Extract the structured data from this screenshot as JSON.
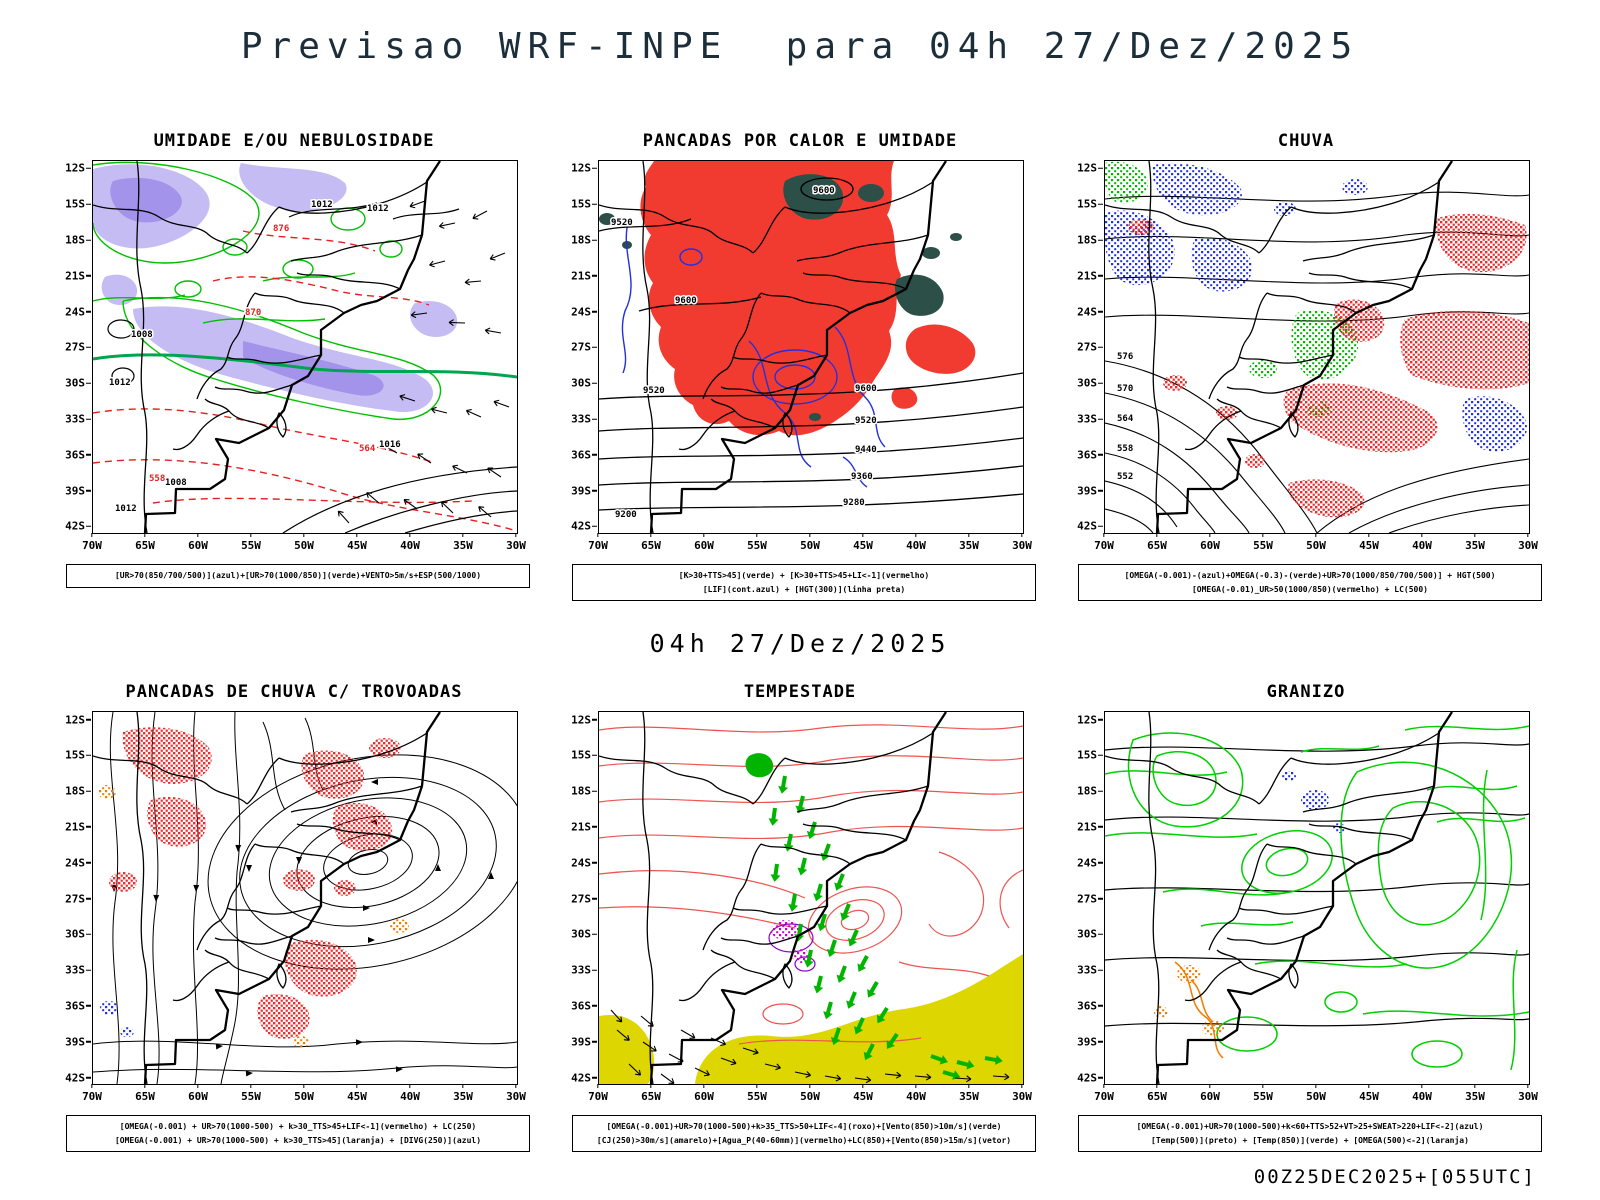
{
  "header": {
    "title": "Previsao WRF-INPE  para 04h 27/Dez/2025"
  },
  "center_time_label": "04h 27/Dez/2025",
  "footer_run_label": "00Z25DEC2025+[055UTC]",
  "axes": {
    "lat_labels": [
      "12S",
      "15S",
      "18S",
      "21S",
      "24S",
      "27S",
      "30S",
      "33S",
      "36S",
      "39S",
      "42S"
    ],
    "lon_labels": [
      "70W",
      "65W",
      "60W",
      "55W",
      "50W",
      "45W",
      "40W",
      "35W",
      "30W"
    ]
  },
  "palette": {
    "green": "#00bf00",
    "red": "#e62e2e",
    "blue": "#2230dd",
    "lavender": "#c6bcf4",
    "yellow": "#ddd600",
    "orange": "#ee7d00",
    "magenta": "#cc00cc",
    "dark_green": "#2c4f47",
    "pink": "#ef5350"
  },
  "panels": [
    {
      "title": "UMIDADE E/OU NEBULOSIDADE",
      "caption_lines": [
        "[UR>70(850/700/500)](azul)+[UR>70(1000/850)](verde)+VENTO>5m/s+ESP(500/1000)"
      ],
      "contour_labels_black": [
        "1012",
        "1012",
        "1008",
        "1012",
        "1016",
        "1008",
        "1012"
      ],
      "contour_labels_red": [
        "876",
        "870",
        "564",
        "558"
      ]
    },
    {
      "title": "PANCADAS POR CALOR E UMIDADE",
      "caption_lines": [
        "[K>30+TTS>45](verde) + [K>30+TTS>45+LI<-1](vermelho)",
        "[LIF](cont.azul) + [HGT(300)](linha preta)"
      ],
      "contour_labels_black": [
        "9520",
        "9600",
        "9600",
        "9520",
        "9600",
        "9520",
        "9440",
        "9360",
        "9280",
        "9200"
      ]
    },
    {
      "title": "CHUVA",
      "caption_lines": [
        "[OMEGA(-0.001)-(azul)+OMEGA(-0.3)-(verde)+UR>70(1000/850/700/500)] + HGT(500)",
        "[OMEGA(-0.01)_UR>50(1000/850)(vermelho) + LC(500)"
      ],
      "contour_labels_black": [
        "576",
        "570",
        "564",
        "558",
        "552"
      ]
    },
    {
      "title": "PANCADAS DE CHUVA C/ TROVOADAS",
      "caption_lines": [
        "[OMEGA(-0.001) + UR>70(1000-500) + k>30_TTS>45+LIF<-1](vermelho) + LC(250)",
        "[OMEGA(-0.001) + UR>70(1000-500) + k>30_TTS>45](laranja) + [DIVG(250)](azul)"
      ]
    },
    {
      "title": "TEMPESTADE",
      "caption_lines": [
        "[OMEGA(-0.001)+UR>70(1000-500)+k>35_TTS>50+LIF<-4](roxo)+[Vento(850)>10m/s](verde)",
        "[CJ(250)>30m/s](amarelo)+[Agua_P(40-60mm)](vermelho)+LC(850)+[Vento(850)>15m/s](vetor)"
      ]
    },
    {
      "title": "GRANIZO",
      "caption_lines": [
        "[OMEGA(-0.001)+UR>70(1000-500)+k<60+TTS>52+VT>25+SWEAT>220+LIF<-2](azul)",
        "[Temp(500)](preto) + [Temp(850)](verde) + [OMEGA(500)<-2](laranja)"
      ]
    }
  ]
}
